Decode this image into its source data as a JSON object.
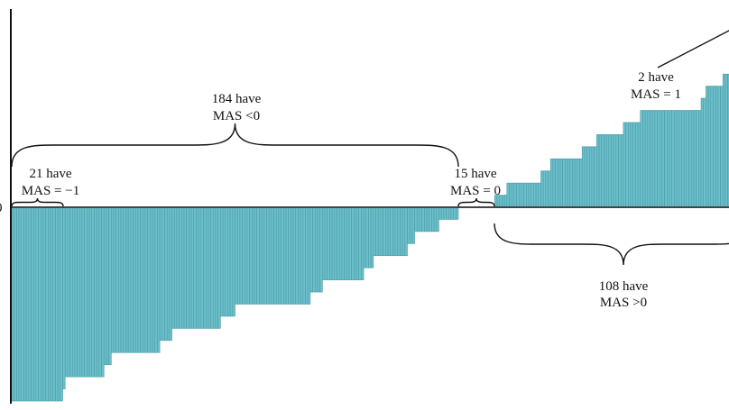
{
  "chart_data": {
    "type": "bar",
    "ylabel": "",
    "xlabel": "",
    "ylim": [
      -1,
      1
    ],
    "y_ticks": [
      "0"
    ],
    "grid": false,
    "bar_color": "#6cc0cb",
    "bar_edge_color": "#4a9aa5",
    "value_unit_note": "",
    "groups": [
      {
        "value": -1,
        "count": 21
      },
      {
        "value": -0.9375,
        "count": 1
      },
      {
        "value": -0.875,
        "count": 16
      },
      {
        "value": -0.8125,
        "count": 3
      },
      {
        "value": -0.75,
        "count": 20
      },
      {
        "value": -0.6875,
        "count": 5
      },
      {
        "value": -0.625,
        "count": 20
      },
      {
        "value": -0.5625,
        "count": 6
      },
      {
        "value": -0.5,
        "count": 31
      },
      {
        "value": -0.4375,
        "count": 5
      },
      {
        "value": -0.375,
        "count": 17
      },
      {
        "value": -0.3125,
        "count": 4
      },
      {
        "value": -0.25,
        "count": 14
      },
      {
        "value": -0.1875,
        "count": 3
      },
      {
        "value": -0.125,
        "count": 10
      },
      {
        "value": -0.0625,
        "count": 8
      },
      {
        "value": 0,
        "count": 15
      },
      {
        "value": 0.0625,
        "count": 5
      },
      {
        "value": 0.125,
        "count": 14
      },
      {
        "value": 0.1875,
        "count": 4
      },
      {
        "value": 0.25,
        "count": 13
      },
      {
        "value": 0.3125,
        "count": 6
      },
      {
        "value": 0.375,
        "count": 11
      },
      {
        "value": 0.4375,
        "count": 7
      },
      {
        "value": 0.5,
        "count": 25
      },
      {
        "value": 0.5625,
        "count": 2
      },
      {
        "value": 0.625,
        "count": 7
      },
      {
        "value": 0.6875,
        "count": 4
      },
      {
        "value": 0.75,
        "count": 3
      },
      {
        "value": 0.8125,
        "count": 2
      },
      {
        "value": 0.875,
        "count": 2
      },
      {
        "value": 0.9375,
        "count": 1
      },
      {
        "value": 1,
        "count": 2
      }
    ],
    "annotations": {
      "neg_total": {
        "line1": "184 have",
        "line2": "MAS <0"
      },
      "minus_one": {
        "line1": "21 have",
        "line2": "MAS = −1"
      },
      "zero": {
        "line1": "15 have",
        "line2": "MAS = 0"
      },
      "pos_total": {
        "line1": "108 have",
        "line2": "MAS >0"
      },
      "plus_one": {
        "line1": "2 have",
        "line2": "MAS = 1"
      }
    }
  }
}
